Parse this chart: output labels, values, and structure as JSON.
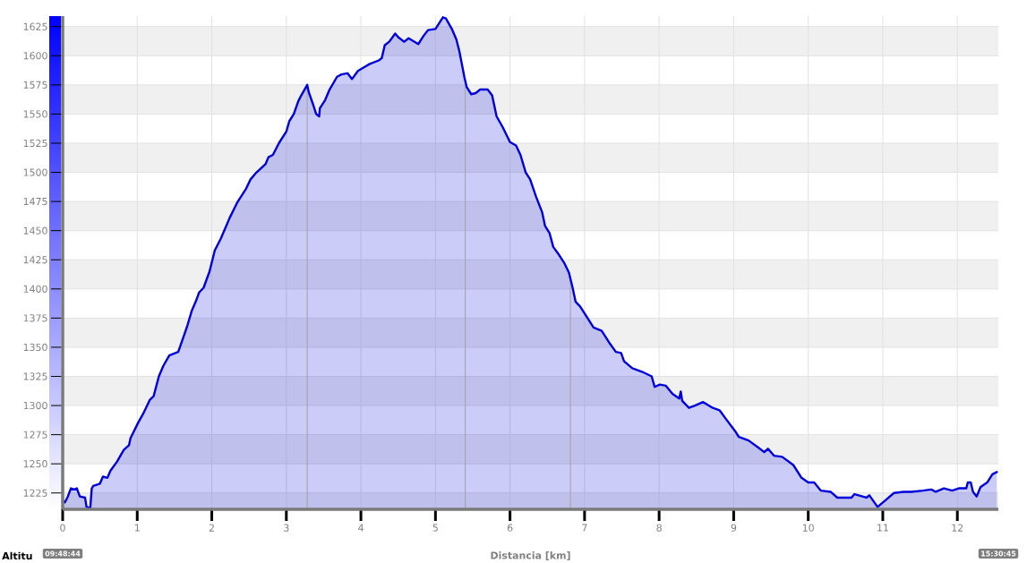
{
  "chart_data": {
    "type": "area",
    "xlabel": "Distancia [km]",
    "x": [
      0,
      0.03,
      0.07,
      0.11,
      0.16,
      0.19,
      0.23,
      0.3,
      0.32,
      0.37,
      0.39,
      0.41,
      0.5,
      0.54,
      0.6,
      0.64,
      0.73,
      0.82,
      0.89,
      0.91,
      1.01,
      1.08,
      1.17,
      1.22,
      1.29,
      1.35,
      1.43,
      1.55,
      1.61,
      1.67,
      1.73,
      1.79,
      1.83,
      1.89,
      1.97,
      2.04,
      2.12,
      2.24,
      2.34,
      2.39,
      2.46,
      2.52,
      2.6,
      2.72,
      2.76,
      2.82,
      2.9,
      3.0,
      3.04,
      3.1,
      3.16,
      3.2,
      3.28,
      3.3,
      3.36,
      3.4,
      3.44,
      3.45,
      3.52,
      3.58,
      3.68,
      3.74,
      3.82,
      3.88,
      3.96,
      4.04,
      4.12,
      4.24,
      4.28,
      4.32,
      4.38,
      4.46,
      4.5,
      4.58,
      4.64,
      4.77,
      4.84,
      4.9,
      5.0,
      5.05,
      5.1,
      5.14,
      5.22,
      5.28,
      5.32,
      5.36,
      5.39,
      5.42,
      5.48,
      5.54,
      5.6,
      5.7,
      5.76,
      5.82,
      5.9,
      6.0,
      6.08,
      6.14,
      6.21,
      6.27,
      6.35,
      6.43,
      6.47,
      6.53,
      6.58,
      6.66,
      6.73,
      6.79,
      6.84,
      6.88,
      6.94,
      7.01,
      7.12,
      7.23,
      7.33,
      7.42,
      7.49,
      7.53,
      7.64,
      7.77,
      7.9,
      7.94,
      8.01,
      8.09,
      8.18,
      8.27,
      8.29,
      8.31,
      8.4,
      8.48,
      8.59,
      8.72,
      8.81,
      8.89,
      9.02,
      9.07,
      9.2,
      9.33,
      9.41,
      9.46,
      9.54,
      9.65,
      9.8,
      9.91,
      10.0,
      10.08,
      10.17,
      10.3,
      10.39,
      10.58,
      10.62,
      10.78,
      10.82,
      10.93,
      11.04,
      11.15,
      11.28,
      11.38,
      11.54,
      11.65,
      11.71,
      11.82,
      11.93,
      12.02,
      12.12,
      12.14,
      12.18,
      12.21,
      12.26,
      12.31,
      12.4,
      12.47,
      12.53
    ],
    "values": [
      1218,
      1217,
      1222,
      1229,
      1228,
      1229,
      1222,
      1221,
      1213,
      1212,
      1229,
      1231,
      1233,
      1239,
      1238,
      1244,
      1252,
      1262,
      1266,
      1272,
      1285,
      1293,
      1305,
      1308,
      1325,
      1334,
      1343,
      1346,
      1357,
      1368,
      1381,
      1390,
      1397,
      1401,
      1415,
      1433,
      1443,
      1461,
      1474,
      1479,
      1486,
      1494,
      1500,
      1507,
      1513,
      1515,
      1525,
      1535,
      1544,
      1550,
      1561,
      1566,
      1575,
      1569,
      1558,
      1550,
      1548,
      1555,
      1562,
      1571,
      1582,
      1584,
      1585,
      1580,
      1587,
      1590,
      1593,
      1596,
      1598,
      1609,
      1612,
      1619,
      1616,
      1612,
      1615,
      1610,
      1617,
      1622,
      1623,
      1628,
      1633,
      1632,
      1623,
      1614,
      1604,
      1591,
      1581,
      1573,
      1567,
      1568,
      1571,
      1571,
      1566,
      1548,
      1539,
      1526,
      1523,
      1515,
      1500,
      1494,
      1479,
      1466,
      1454,
      1448,
      1436,
      1429,
      1422,
      1414,
      1401,
      1389,
      1385,
      1378,
      1367,
      1364,
      1354,
      1346,
      1345,
      1338,
      1332,
      1329,
      1325,
      1316,
      1318,
      1317,
      1310,
      1306,
      1312,
      1304,
      1298,
      1300,
      1303,
      1298,
      1296,
      1289,
      1278,
      1273,
      1270,
      1264,
      1260,
      1263,
      1257,
      1256,
      1249,
      1238,
      1234,
      1234,
      1227,
      1226,
      1221,
      1221,
      1224,
      1221,
      1223,
      1213,
      1219,
      1225,
      1226,
      1226,
      1227,
      1228,
      1226,
      1229,
      1227,
      1229,
      1229,
      1234,
      1234,
      1226,
      1222,
      1230,
      1234,
      1241,
      1243
    ],
    "color": "#0000dd",
    "xlim": [
      0,
      12.55
    ],
    "ylim": [
      1211,
      1634
    ],
    "xticks": [
      0,
      1,
      2,
      3,
      4,
      5,
      6,
      7,
      8,
      9,
      10,
      11,
      12
    ],
    "yticks": [
      1225,
      1250,
      1275,
      1300,
      1325,
      1350,
      1375,
      1400,
      1425,
      1450,
      1475,
      1500,
      1525,
      1550,
      1575,
      1600,
      1625
    ],
    "grid": true,
    "bands": [
      {
        "axis": "y",
        "from": 1211,
        "to": 1225,
        "color": "#f0f0f0"
      },
      {
        "axis": "y",
        "from": 1250,
        "to": 1275,
        "color": "#f0f0f0"
      },
      {
        "axis": "y",
        "from": 1300,
        "to": 1325,
        "color": "#f0f0f0"
      },
      {
        "axis": "y",
        "from": 1350,
        "to": 1375,
        "color": "#f0f0f0"
      },
      {
        "axis": "y",
        "from": 1400,
        "to": 1425,
        "color": "#f0f0f0"
      },
      {
        "axis": "y",
        "from": 1450,
        "to": 1475,
        "color": "#f0f0f0"
      },
      {
        "axis": "y",
        "from": 1500,
        "to": 1525,
        "color": "#f0f0f0"
      },
      {
        "axis": "y",
        "from": 1550,
        "to": 1575,
        "color": "#f0f0f0"
      },
      {
        "axis": "y",
        "from": 1600,
        "to": 1625,
        "color": "#f0f0f0"
      }
    ],
    "ref_lines": [
      {
        "axis": "x",
        "value": 3.28,
        "color": "#a0a0a0"
      },
      {
        "axis": "x",
        "value": 5.4,
        "color": "#a0a0a0"
      },
      {
        "axis": "x",
        "value": 6.81,
        "color": "#a0a0a0"
      }
    ],
    "annotations": [
      "Altitu",
      "09:48:44",
      "15:30:45"
    ]
  }
}
